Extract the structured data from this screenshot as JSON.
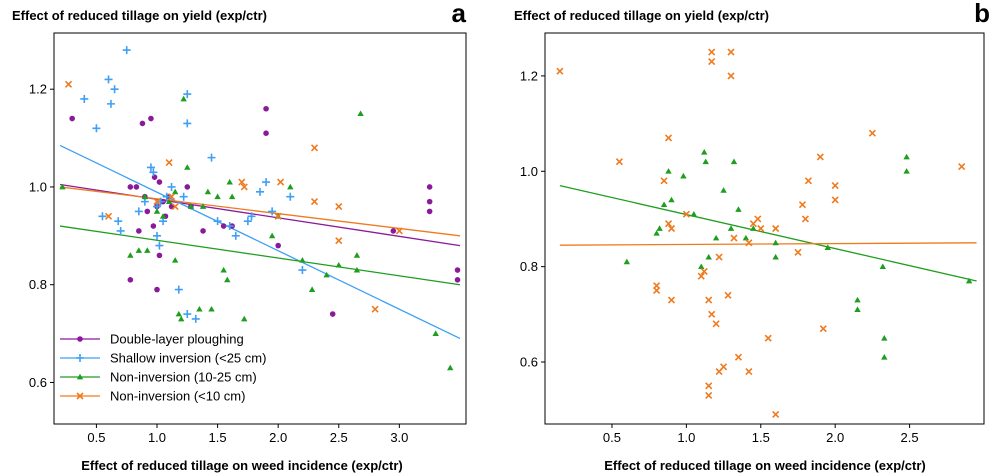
{
  "colors": {
    "double_layer": "#8b1a9a",
    "shallow": "#3f9ff5",
    "non_inv_10_25": "#1e9e1e",
    "non_inv_10": "#f07a1e"
  },
  "chart_data": [
    {
      "panel": "a",
      "type": "scatter",
      "title": "Effect of reduced tillage on yield (exp/ctr)",
      "xlabel": "Effect of reduced tillage on weed incidence (exp/ctr)",
      "ylabel": "",
      "xlim": [
        0.15,
        3.55
      ],
      "ylim": [
        0.515,
        1.315
      ],
      "xticks": [
        0.5,
        1.0,
        1.5,
        2.0,
        2.5,
        3.0
      ],
      "xtick_labels": [
        "0.5",
        "1.0",
        "1.5",
        "2.0",
        "2.5",
        "3.0"
      ],
      "yticks": [
        0.6,
        0.8,
        1.0,
        1.2
      ],
      "ytick_labels": [
        "0.6",
        "0.8",
        "1.0",
        "1.2"
      ],
      "legend_position": "bottom-left",
      "series": [
        {
          "name": "Double-layer ploughing",
          "marker": "circle",
          "color": "#8b1a9a",
          "points": [
            [
              0.3,
              1.14
            ],
            [
              0.78,
              1.0
            ],
            [
              0.83,
              1.0
            ],
            [
              0.85,
              0.91
            ],
            [
              0.88,
              1.13
            ],
            [
              0.9,
              0.98
            ],
            [
              0.92,
              0.95
            ],
            [
              0.95,
              1.14
            ],
            [
              0.97,
              0.92
            ],
            [
              0.98,
              1.02
            ],
            [
              1.0,
              0.96
            ],
            [
              1.0,
              0.79
            ],
            [
              1.02,
              1.01
            ],
            [
              1.05,
              0.97
            ],
            [
              1.07,
              0.94
            ],
            [
              1.1,
              0.98
            ],
            [
              1.12,
              0.96
            ],
            [
              1.25,
              1.0
            ],
            [
              1.28,
              0.96
            ],
            [
              1.38,
              0.91
            ],
            [
              1.55,
              0.92
            ],
            [
              1.62,
              0.92
            ],
            [
              1.9,
              1.11
            ],
            [
              1.9,
              1.16
            ],
            [
              2.0,
              0.88
            ],
            [
              2.45,
              0.74
            ],
            [
              2.95,
              0.91
            ],
            [
              3.25,
              1.0
            ],
            [
              3.25,
              0.97
            ],
            [
              3.25,
              0.95
            ],
            [
              3.48,
              0.83
            ],
            [
              3.48,
              0.81
            ],
            [
              0.78,
              0.81
            ],
            [
              1.02,
              0.86
            ]
          ],
          "trend": [
            [
              0.2,
              1.005
            ],
            [
              3.5,
              0.88
            ]
          ]
        },
        {
          "name": "Shallow inversion (<25 cm)",
          "marker": "plus",
          "color": "#3f9ff5",
          "points": [
            [
              0.4,
              1.18
            ],
            [
              0.5,
              1.12
            ],
            [
              0.55,
              0.94
            ],
            [
              0.6,
              1.22
            ],
            [
              0.62,
              1.17
            ],
            [
              0.65,
              1.2
            ],
            [
              0.68,
              0.93
            ],
            [
              0.7,
              0.91
            ],
            [
              0.75,
              1.28
            ],
            [
              0.85,
              0.95
            ],
            [
              0.9,
              0.97
            ],
            [
              0.95,
              1.04
            ],
            [
              0.97,
              1.03
            ],
            [
              1.0,
              0.9
            ],
            [
              1.02,
              0.88
            ],
            [
              1.03,
              0.97
            ],
            [
              1.05,
              0.93
            ],
            [
              1.08,
              0.98
            ],
            [
              1.12,
              1.0
            ],
            [
              1.18,
              0.79
            ],
            [
              1.22,
              0.98
            ],
            [
              1.25,
              1.19
            ],
            [
              1.25,
              1.13
            ],
            [
              1.25,
              0.74
            ],
            [
              1.32,
              0.73
            ],
            [
              1.45,
              1.06
            ],
            [
              1.5,
              0.93
            ],
            [
              1.6,
              0.92
            ],
            [
              1.65,
              0.9
            ],
            [
              1.75,
              0.93
            ],
            [
              1.78,
              0.94
            ],
            [
              1.85,
              0.99
            ],
            [
              1.9,
              1.01
            ],
            [
              1.95,
              0.95
            ],
            [
              2.1,
              0.98
            ],
            [
              2.2,
              0.83
            ],
            [
              0.95,
              0.68
            ],
            [
              1.0,
              0.96
            ]
          ],
          "trend": [
            [
              0.2,
              1.085
            ],
            [
              3.5,
              0.69
            ]
          ]
        },
        {
          "name": "Non-inversion (10-25 cm)",
          "marker": "triangle",
          "color": "#1e9e1e",
          "points": [
            [
              0.22,
              1.0
            ],
            [
              0.78,
              0.86
            ],
            [
              0.85,
              0.87
            ],
            [
              0.9,
              0.98
            ],
            [
              0.92,
              0.87
            ],
            [
              0.98,
              0.7
            ],
            [
              1.0,
              0.95
            ],
            [
              1.05,
              0.94
            ],
            [
              1.1,
              0.97
            ],
            [
              1.15,
              0.99
            ],
            [
              1.15,
              0.85
            ],
            [
              1.18,
              0.74
            ],
            [
              1.2,
              0.73
            ],
            [
              1.22,
              1.18
            ],
            [
              1.25,
              1.04
            ],
            [
              1.28,
              0.96
            ],
            [
              1.35,
              0.75
            ],
            [
              1.38,
              0.96
            ],
            [
              1.42,
              0.99
            ],
            [
              1.45,
              0.75
            ],
            [
              1.5,
              0.98
            ],
            [
              1.55,
              0.83
            ],
            [
              1.58,
              0.81
            ],
            [
              1.6,
              1.01
            ],
            [
              1.62,
              0.98
            ],
            [
              1.72,
              0.73
            ],
            [
              1.95,
              0.9
            ],
            [
              2.0,
              0.94
            ],
            [
              2.1,
              1.0
            ],
            [
              2.2,
              0.85
            ],
            [
              2.28,
              0.79
            ],
            [
              2.4,
              0.82
            ],
            [
              2.5,
              0.84
            ],
            [
              2.65,
              0.86
            ],
            [
              2.65,
              0.83
            ],
            [
              2.68,
              1.15
            ],
            [
              3.3,
              0.7
            ],
            [
              3.42,
              0.63
            ]
          ],
          "trend": [
            [
              0.2,
              0.92
            ],
            [
              3.5,
              0.8
            ]
          ]
        },
        {
          "name": "Non-inversion (<10 cm)",
          "marker": "x",
          "color": "#f07a1e",
          "points": [
            [
              0.27,
              1.21
            ],
            [
              0.6,
              0.94
            ],
            [
              1.0,
              0.97
            ],
            [
              1.1,
              1.05
            ],
            [
              1.12,
              0.98
            ],
            [
              1.15,
              0.96
            ],
            [
              1.7,
              1.01
            ],
            [
              1.72,
              1.0
            ],
            [
              2.0,
              0.94
            ],
            [
              2.02,
              1.01
            ],
            [
              2.3,
              1.08
            ],
            [
              2.3,
              0.97
            ],
            [
              2.5,
              0.96
            ],
            [
              2.5,
              0.89
            ],
            [
              2.8,
              0.75
            ],
            [
              3.0,
              0.91
            ]
          ],
          "trend": [
            [
              0.2,
              1.0
            ],
            [
              3.5,
              0.9
            ]
          ]
        }
      ]
    },
    {
      "panel": "b",
      "type": "scatter",
      "title": "Effect of reduced tillage on yield (exp/ctr)",
      "xlabel": "Effect of reduced tillage on weed incidence (exp/ctr)",
      "ylabel": "",
      "xlim": [
        0.05,
        3.0
      ],
      "ylim": [
        0.47,
        1.29
      ],
      "xticks": [
        0.5,
        1.0,
        1.5,
        2.0,
        2.5
      ],
      "xtick_labels": [
        "0.5",
        "1.0",
        "1.5",
        "2.0",
        "2.5"
      ],
      "yticks": [
        0.6,
        0.8,
        1.0,
        1.2
      ],
      "ytick_labels": [
        "0.6",
        "0.8",
        "1.0",
        "1.2"
      ],
      "series": [
        {
          "marker": "triangle",
          "color": "#1e9e1e",
          "points": [
            [
              0.6,
              0.81
            ],
            [
              0.8,
              0.87
            ],
            [
              0.82,
              0.88
            ],
            [
              0.85,
              0.93
            ],
            [
              0.88,
              1.0
            ],
            [
              0.9,
              0.94
            ],
            [
              0.98,
              0.99
            ],
            [
              1.05,
              0.91
            ],
            [
              1.1,
              0.8
            ],
            [
              1.12,
              1.04
            ],
            [
              1.13,
              1.02
            ],
            [
              1.15,
              0.82
            ],
            [
              1.2,
              0.86
            ],
            [
              1.25,
              0.96
            ],
            [
              1.3,
              0.88
            ],
            [
              1.32,
              1.02
            ],
            [
              1.35,
              0.92
            ],
            [
              1.4,
              0.86
            ],
            [
              1.45,
              0.88
            ],
            [
              1.6,
              0.85
            ],
            [
              1.6,
              0.82
            ],
            [
              1.95,
              0.84
            ],
            [
              2.15,
              0.73
            ],
            [
              2.15,
              0.71
            ],
            [
              2.32,
              0.8
            ],
            [
              2.33,
              0.65
            ],
            [
              2.33,
              0.61
            ],
            [
              2.48,
              1.03
            ],
            [
              2.48,
              1.0
            ],
            [
              2.9,
              0.77
            ]
          ],
          "trend": [
            [
              0.15,
              0.97
            ],
            [
              2.95,
              0.77
            ]
          ]
        },
        {
          "marker": "x",
          "color": "#f07a1e",
          "points": [
            [
              0.15,
              1.21
            ],
            [
              0.55,
              1.02
            ],
            [
              0.8,
              0.76
            ],
            [
              0.8,
              0.75
            ],
            [
              0.85,
              0.98
            ],
            [
              0.88,
              0.89
            ],
            [
              0.88,
              1.07
            ],
            [
              0.9,
              0.73
            ],
            [
              0.9,
              0.88
            ],
            [
              1.0,
              0.91
            ],
            [
              1.1,
              0.78
            ],
            [
              1.12,
              0.79
            ],
            [
              1.15,
              0.73
            ],
            [
              1.15,
              0.55
            ],
            [
              1.15,
              0.53
            ],
            [
              1.17,
              1.25
            ],
            [
              1.17,
              1.23
            ],
            [
              1.17,
              0.7
            ],
            [
              1.2,
              0.68
            ],
            [
              1.22,
              0.82
            ],
            [
              1.22,
              0.58
            ],
            [
              1.25,
              0.59
            ],
            [
              1.28,
              0.74
            ],
            [
              1.3,
              1.25
            ],
            [
              1.3,
              1.2
            ],
            [
              1.32,
              0.86
            ],
            [
              1.35,
              0.61
            ],
            [
              1.42,
              0.85
            ],
            [
              1.45,
              0.89
            ],
            [
              1.48,
              0.9
            ],
            [
              1.5,
              0.88
            ],
            [
              1.55,
              0.65
            ],
            [
              1.6,
              0.88
            ],
            [
              1.6,
              0.49
            ],
            [
              1.75,
              0.83
            ],
            [
              1.78,
              0.93
            ],
            [
              1.8,
              0.9
            ],
            [
              1.82,
              0.98
            ],
            [
              1.9,
              1.03
            ],
            [
              1.92,
              0.67
            ],
            [
              2.0,
              0.97
            ],
            [
              2.0,
              0.94
            ],
            [
              2.25,
              1.08
            ],
            [
              2.85,
              1.01
            ],
            [
              1.42,
              0.58
            ]
          ],
          "trend": [
            [
              0.15,
              0.845
            ],
            [
              2.95,
              0.85
            ]
          ]
        }
      ]
    }
  ]
}
